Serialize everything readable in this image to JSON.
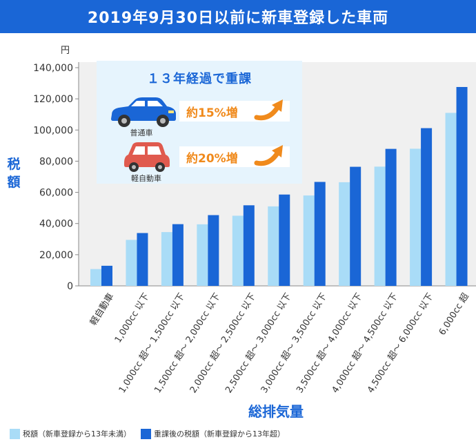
{
  "title": "2019年9月30日以前に新車登録した車両",
  "colors": {
    "light": "#a9dcf7",
    "dark": "#1a66d6",
    "accent": "#f08a1c",
    "title_bg": "#1a66d6"
  },
  "callout": {
    "title": "１３年経過で重課",
    "items": [
      {
        "label": "普通車",
        "percent": "約15%増",
        "icon": "sedan-car-icon"
      },
      {
        "label": "軽自動車",
        "percent": "約20%増",
        "icon": "kei-car-icon"
      }
    ]
  },
  "legend": [
    {
      "label": "税額（新車登録から13年未満）"
    },
    {
      "label": "重課後の税額（新車登録から13年超）"
    }
  ],
  "chart_data": {
    "type": "bar",
    "title": "2019年9月30日以前に新車登録した車両",
    "xlabel": "総排気量",
    "ylabel": "税額",
    "yunit": "円",
    "ylim": [
      0,
      140000
    ],
    "yticks": [
      0,
      20000,
      40000,
      60000,
      80000,
      100000,
      120000,
      140000
    ],
    "ytick_labels": [
      "0",
      "20,000",
      "40,000",
      "60,000",
      "80,000",
      "100,000",
      "120,000",
      "140,000"
    ],
    "grid": false,
    "legend_position": "bottom-left",
    "categories": [
      "軽自動車",
      "1,000cc 以下",
      "1,000cc 超～ 1,500cc 以下",
      "1,500cc 超～ 2,000cc 以下",
      "2,000cc 超～ 2,500cc 以下",
      "2,500cc 超～ 3,000cc 以下",
      "3,000cc 超～ 3,500cc 以下",
      "3,500cc 超～ 4,000cc 以下",
      "4,000cc 超～ 4,500cc 以下",
      "4,500cc 超～ 6,000cc 以下",
      "6,000cc 超"
    ],
    "series": [
      {
        "name": "税額（新車登録から13年未満）",
        "values": [
          10800,
          29500,
          34500,
          39500,
          45000,
          51000,
          58000,
          66500,
          76500,
          88000,
          111000
        ]
      },
      {
        "name": "重課後の税額（新車登録から13年超）",
        "values": [
          12900,
          33900,
          39600,
          45400,
          51700,
          58600,
          66700,
          76400,
          87900,
          101200,
          127600
        ]
      }
    ]
  }
}
